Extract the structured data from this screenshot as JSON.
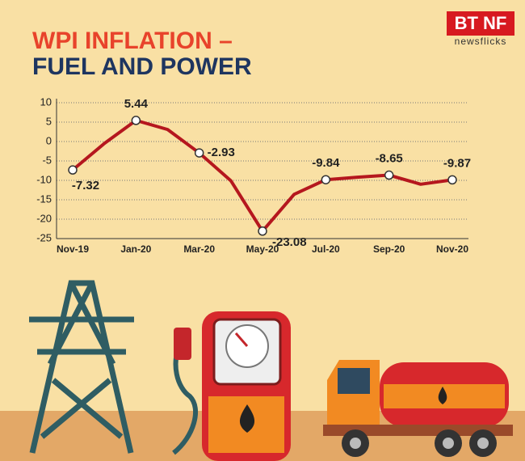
{
  "logo": {
    "brand": "BT NF",
    "sub": "newsflicks"
  },
  "chart_data": {
    "type": "line",
    "title": [
      "WPI INFLATION –",
      "FUEL AND POWER"
    ],
    "categories": [
      "Nov-19",
      null,
      "Jan-20",
      null,
      "Mar-20",
      null,
      "May-20",
      null,
      "Jul-20",
      null,
      "Sep-20",
      null,
      "Nov-20"
    ],
    "series": [
      {
        "name": "WPI inflation – fuel and power",
        "color": "#b5171e",
        "values": [
          -7.32,
          -0.5,
          5.44,
          3.1,
          -2.93,
          -10.1,
          -23.08,
          -13.6,
          -9.84,
          -9.2,
          -8.65,
          -11,
          -9.87
        ]
      }
    ],
    "ylim": [
      -25,
      10
    ],
    "yticks": [
      10,
      5,
      0,
      -5,
      -10,
      -15,
      -20,
      -25
    ],
    "grid": true
  }
}
